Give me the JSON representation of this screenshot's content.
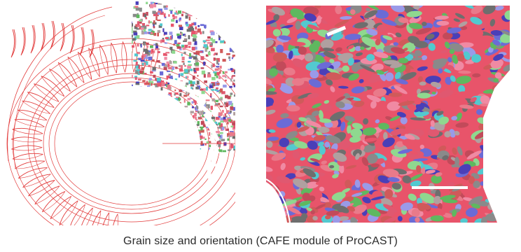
{
  "caption": "Grain size and orientation (CAFE module of ProCAST)",
  "palette": [
    "#e8546a",
    "#e97a8a",
    "#6b6bd6",
    "#4a3fb8",
    "#53c9cf",
    "#8fd88f",
    "#5fb85f",
    "#8a8a8a",
    "#6e6e6e",
    "#f08aa3",
    "#c24a5a",
    "#b0a0a0",
    "#9a9ae8",
    "#d05a5a",
    "#e05870"
  ],
  "mesh_color": "#e23a3a"
}
